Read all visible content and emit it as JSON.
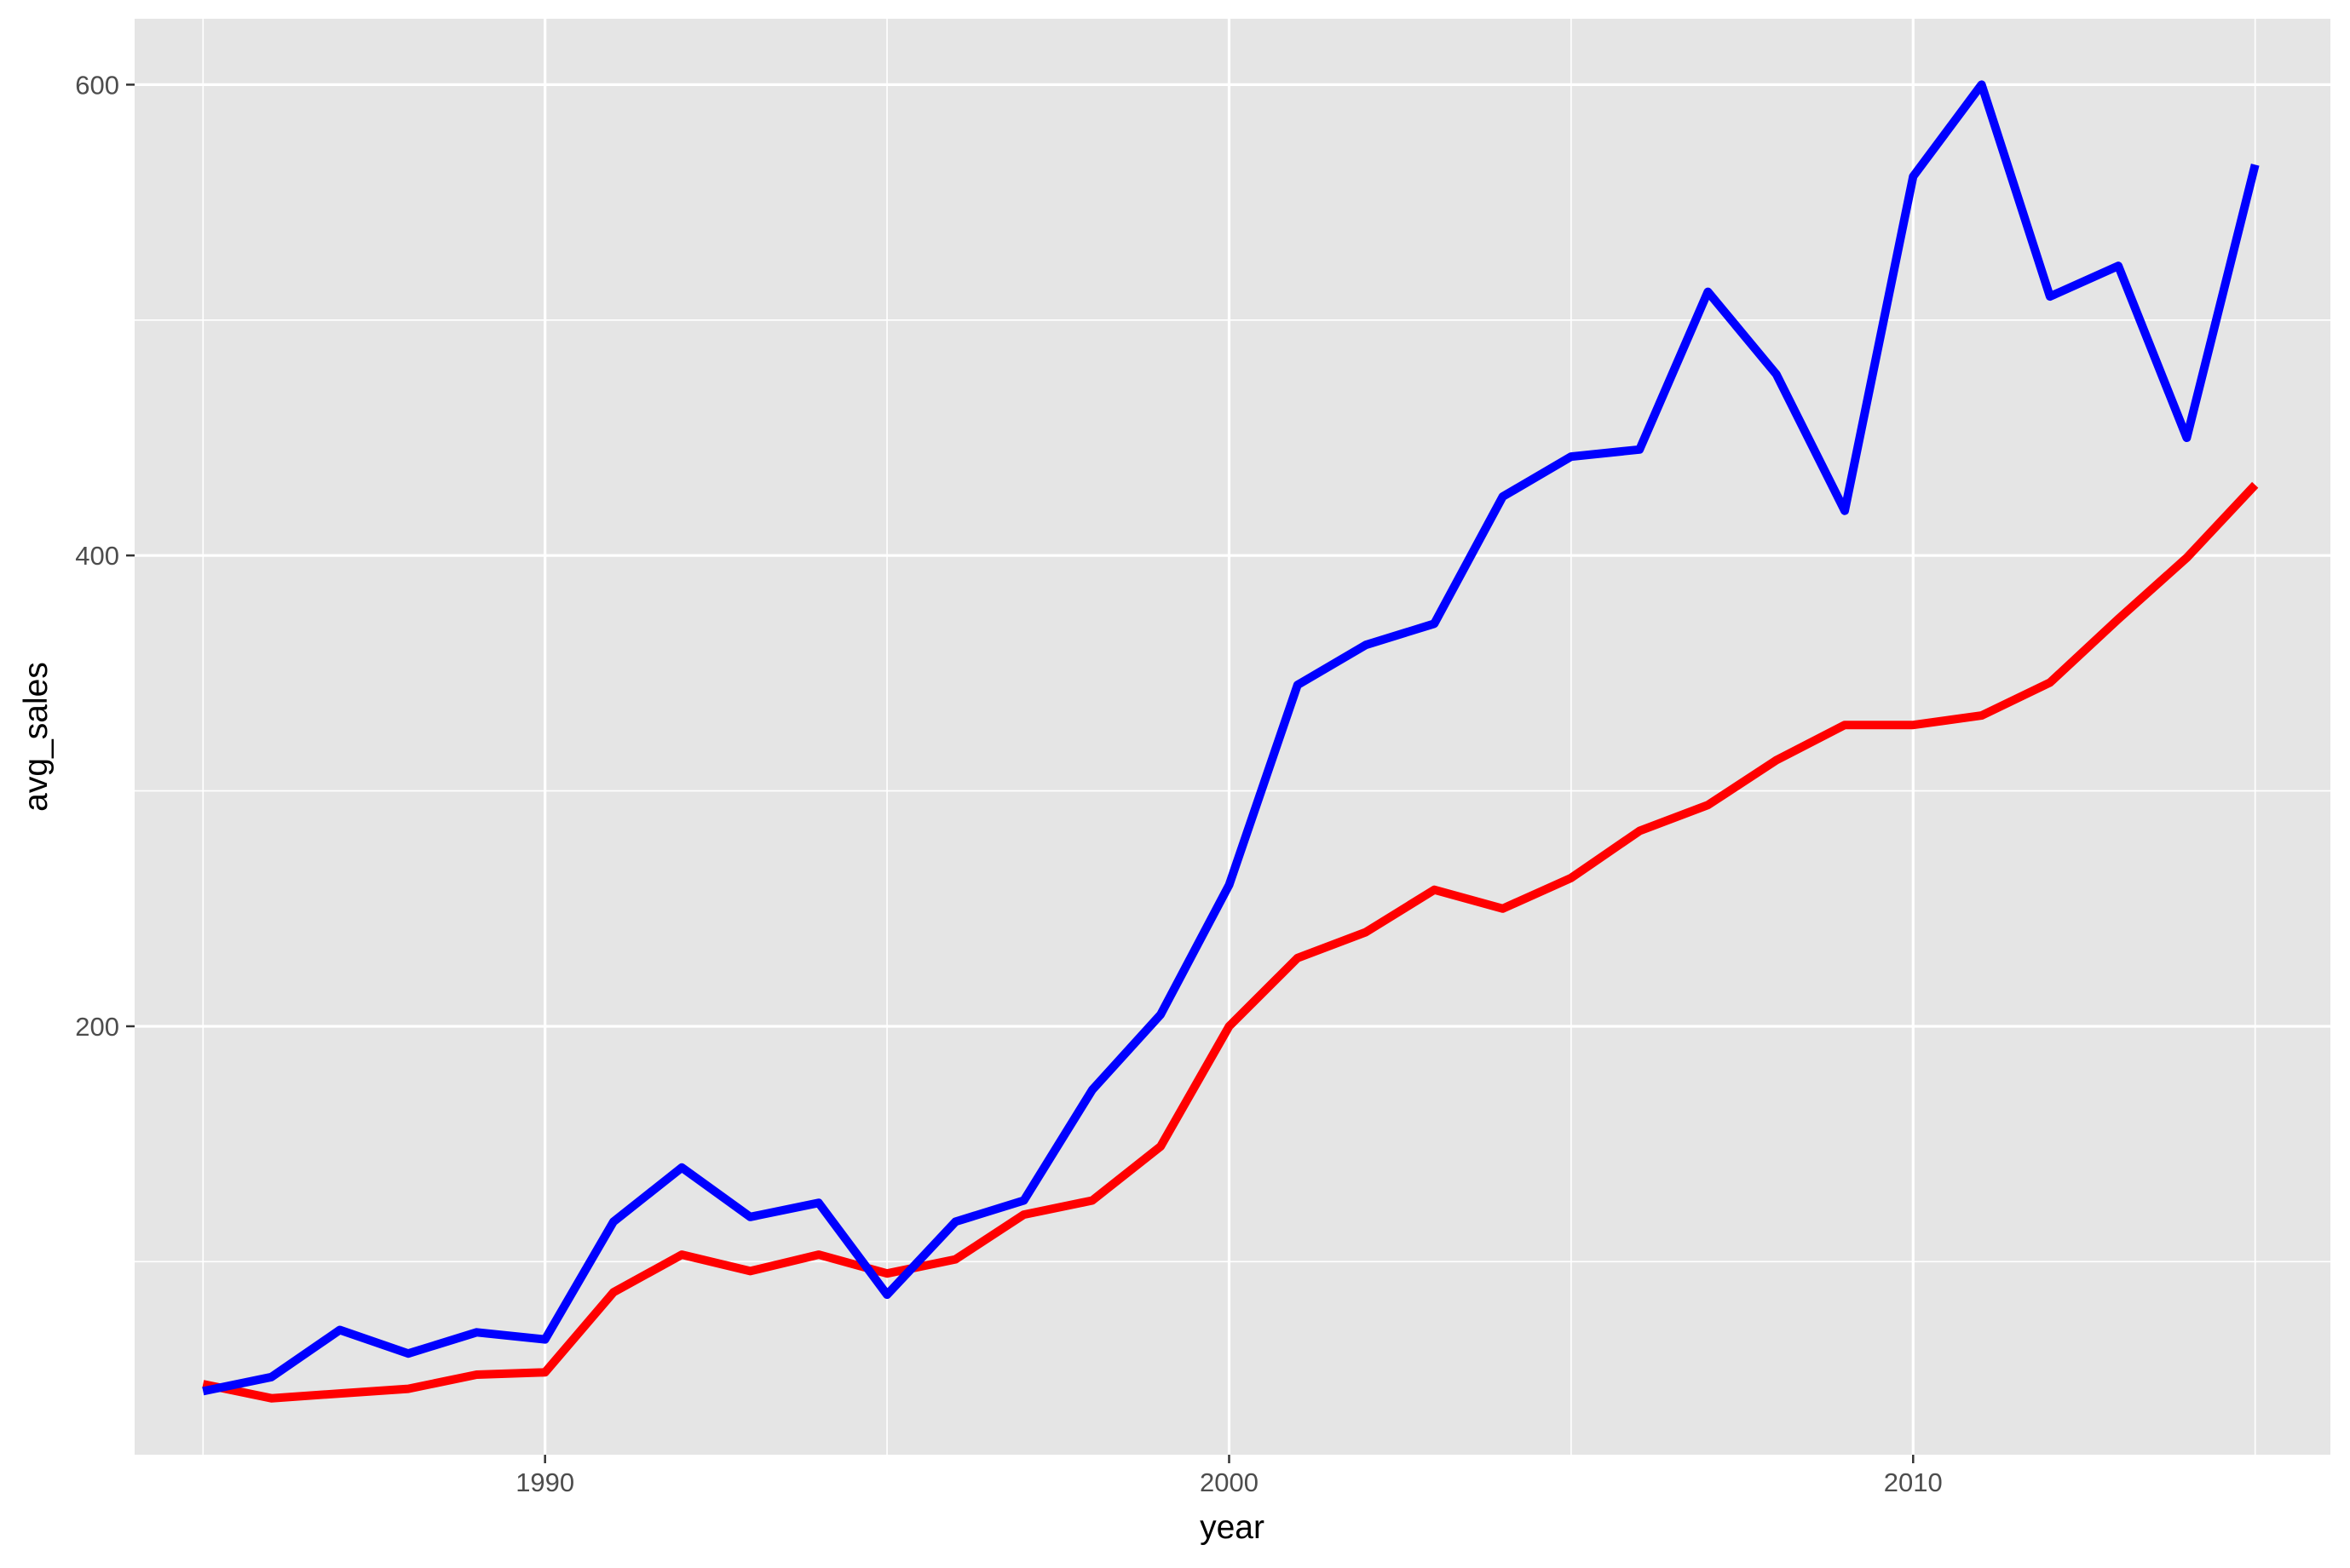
{
  "chart_data": {
    "type": "line",
    "title": "",
    "xlabel": "year",
    "ylabel": "avg_sales",
    "xlim": [
      1984,
      2016.1
    ],
    "ylim": [
      18,
      628
    ],
    "x_major_ticks": [
      1990,
      2000,
      2010
    ],
    "x_minor_ticks": [
      1985,
      1995,
      2005,
      2015
    ],
    "y_major_ticks": [
      200,
      400,
      600
    ],
    "y_minor_ticks": [
      100,
      300,
      500
    ],
    "x_tick_labels": [
      "1990",
      "2000",
      "2010"
    ],
    "y_tick_labels": [
      "200",
      "400",
      "600"
    ],
    "grid": true,
    "panel_background": "#e5e5e5",
    "grid_color": "#ffffff",
    "x": [
      1985,
      1986,
      1987,
      1988,
      1989,
      1990,
      1991,
      1992,
      1993,
      1994,
      1995,
      1996,
      1997,
      1998,
      1999,
      2000,
      2001,
      2002,
      2003,
      2004,
      2005,
      2006,
      2007,
      2008,
      2009,
      2010,
      2011,
      2012,
      2013,
      2014,
      2015
    ],
    "series": [
      {
        "color": "#ff0000",
        "values": [
          48,
          42,
          44,
          46,
          52,
          53,
          87,
          103,
          96,
          103,
          95,
          101,
          120,
          126,
          149,
          200,
          229,
          240,
          258,
          250,
          263,
          283,
          294,
          313,
          328,
          328,
          332,
          346,
          373,
          399,
          430
        ]
      },
      {
        "color": "#0000ff",
        "values": [
          45,
          51,
          71,
          61,
          70,
          67,
          117,
          140,
          119,
          125,
          86,
          117,
          126,
          173,
          205,
          260,
          345,
          362,
          371,
          425,
          442,
          445,
          512,
          477,
          419,
          561,
          600,
          510,
          523,
          450,
          566
        ]
      }
    ]
  }
}
